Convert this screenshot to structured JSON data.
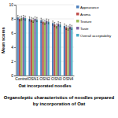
{
  "chart_data": {
    "type": "bar",
    "title": "Organoleptic characteristics of noodles prepared by incorporation of Oat",
    "x_label": "Oat incorporated noodles",
    "y_label": "Mean scores",
    "categories": [
      "Control",
      "OSN1",
      "OSN2",
      "OSN3",
      "OSN4"
    ],
    "series": [
      {
        "name": "Appearance",
        "color": "#4f81bd",
        "values": [
          8.2,
          8.0,
          7.8,
          7.4,
          7.0
        ],
        "errors": [
          0.3,
          0.3,
          0.3,
          0.3,
          0.3
        ]
      },
      {
        "name": "Aroma",
        "color": "#c0504d",
        "values": [
          8.0,
          7.9,
          7.6,
          7.2,
          6.8
        ],
        "errors": [
          0.3,
          0.3,
          0.3,
          0.3,
          0.3
        ]
      },
      {
        "name": "Texture",
        "color": "#9bbb59",
        "values": [
          8.1,
          7.8,
          7.5,
          7.0,
          6.7
        ],
        "errors": [
          0.3,
          0.3,
          0.3,
          0.3,
          0.3
        ]
      },
      {
        "name": "Taste",
        "color": "#8064a2",
        "values": [
          8.2,
          8.0,
          7.7,
          7.3,
          6.9
        ],
        "errors": [
          0.3,
          0.3,
          0.3,
          0.3,
          0.3
        ]
      },
      {
        "name": "Overall acceptability",
        "color": "#4bacc6",
        "values": [
          8.1,
          7.9,
          7.6,
          7.2,
          6.8
        ],
        "errors": [
          0.3,
          0.3,
          0.3,
          0.3,
          0.3
        ]
      }
    ],
    "ylim": [
      0,
      10
    ],
    "yticks": [
      0,
      2,
      4,
      6,
      8,
      10
    ],
    "grid": true,
    "legend": "right"
  }
}
